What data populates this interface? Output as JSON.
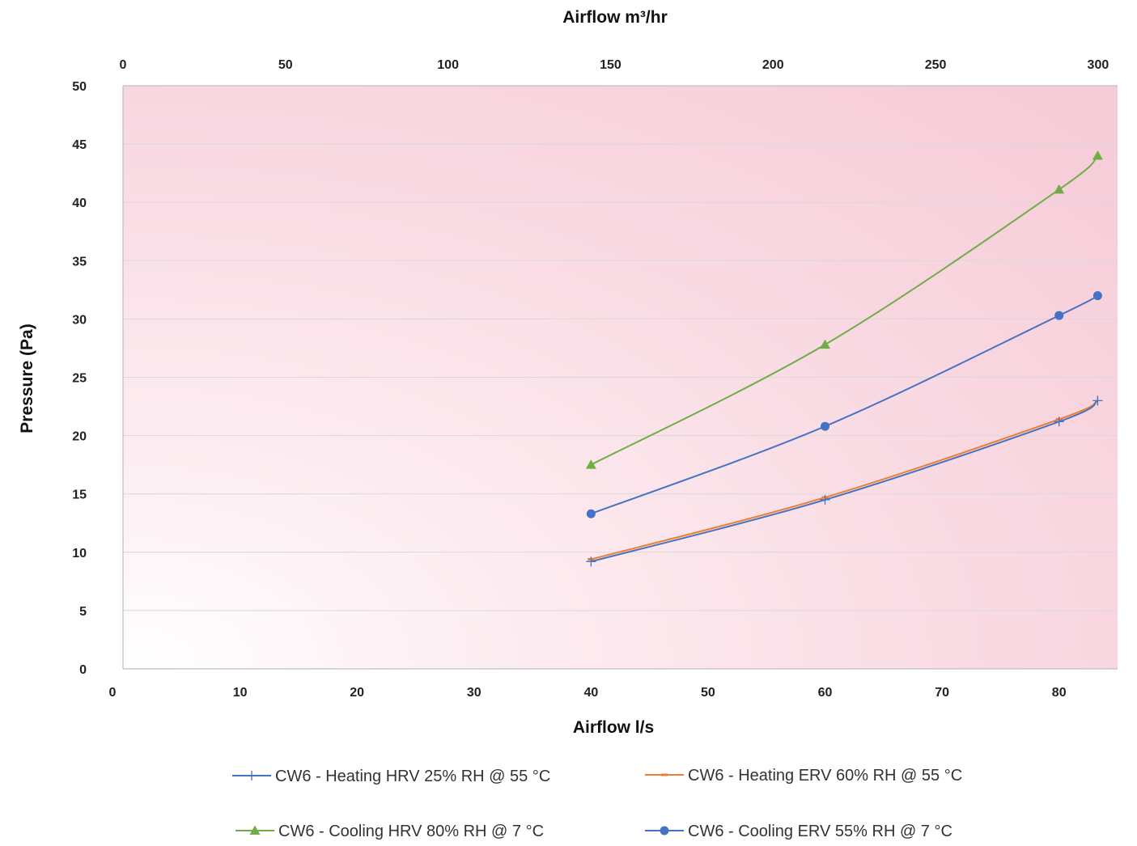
{
  "chart_data": {
    "type": "line",
    "title": "",
    "xlabel": "Airflow l/s",
    "ylabel": "Pressure (Pa)",
    "x2label": "Airflow m³/hr",
    "xlim": [
      0,
      85
    ],
    "ylim": [
      0,
      50
    ],
    "x2lim": [
      0,
      306
    ],
    "x_ticks": [
      0,
      10,
      20,
      30,
      40,
      50,
      60,
      70,
      80
    ],
    "y_ticks": [
      0,
      5,
      10,
      15,
      20,
      25,
      30,
      35,
      40,
      45,
      50
    ],
    "x2_ticks": [
      0,
      50,
      100,
      150,
      200,
      250,
      300
    ],
    "grid": "horizontal",
    "legend_position": "bottom",
    "series": [
      {
        "name": "CW6 - Heating HRV 25% RH @ 55 °C",
        "color": "#4472c4",
        "marker": "plus",
        "x": [
          40,
          60,
          80,
          83.3
        ],
        "y": [
          9.2,
          14.5,
          21.2,
          23.0
        ]
      },
      {
        "name": "CW6 - Heating ERV 60% RH @ 55 °C",
        "color": "#ed7d31",
        "marker": "dash",
        "x": [
          40,
          60,
          80,
          83.3
        ],
        "y": [
          9.4,
          14.7,
          21.4,
          23.0
        ]
      },
      {
        "name": "CW6 - Cooling HRV 80% RH @ 7 °C",
        "color": "#70ad47",
        "marker": "triangle",
        "x": [
          40,
          60,
          80,
          83.3
        ],
        "y": [
          17.5,
          27.8,
          41.1,
          44.0
        ]
      },
      {
        "name": "CW6 - Cooling ERV 55% RH @ 7 °C",
        "color": "#4472c4",
        "marker": "circle",
        "x": [
          40,
          60,
          80,
          83.3
        ],
        "y": [
          13.3,
          20.8,
          30.3,
          32.0
        ]
      }
    ]
  },
  "colors": {
    "plot_bg_light": "#ffffff",
    "plot_bg_dark": "#f7cdd9",
    "grid": "#d9d9d9",
    "axis": "#bfbfbf"
  }
}
